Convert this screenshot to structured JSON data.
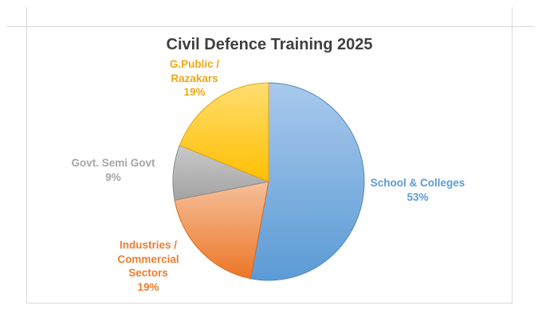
{
  "ui": {
    "background_color": "#FFFFFF",
    "gridline_color": "#D8D8D8"
  },
  "chart_data": {
    "type": "pie",
    "title": "Civil Defence Training 2025",
    "title_color": "#3F3F3F",
    "categories": [
      "School & Colleges",
      "Industries / Commercial Sectors",
      "Govt. Semi Govt",
      "G.Public / Razakars"
    ],
    "values": [
      53,
      19,
      9,
      19
    ],
    "unit": "%",
    "start_angle_deg": 0,
    "direction": "clockwise",
    "legend": "none",
    "labels_position": "outside-end",
    "slices": [
      {
        "slug": "school-colleges",
        "name": "School & Colleges",
        "value": 53,
        "pct_label": "53%",
        "color": "#5B9BD5",
        "color_light": "#A9C9EC",
        "border": "#4F86C0",
        "text_color": "#5B9BD5",
        "lines": [
          "School & Colleges",
          "53%"
        ]
      },
      {
        "slug": "industries-commercial",
        "name": "Industries / Commercial Sectors",
        "value": 19,
        "pct_label": "19%",
        "color": "#EC7626",
        "color_light": "#F6C09A",
        "border": "#DC6B1E",
        "text_color": "#ED7D31",
        "lines": [
          "Industries /",
          "Commercial",
          "Sectors",
          "19%"
        ]
      },
      {
        "slug": "govt-semi-govt",
        "name": "Govt. Semi Govt",
        "value": 9,
        "pct_label": "9%",
        "color": "#A3A3A3",
        "color_light": "#C9C9C9",
        "border": "#8C8C8C",
        "text_color": "#A6A6A6",
        "lines": [
          "Govt. Semi Govt",
          "9%"
        ]
      },
      {
        "slug": "gpublic-razakars",
        "name": "G.Public / Razakars",
        "value": 19,
        "pct_label": "19%",
        "color": "#FFC000",
        "color_light": "#FFDD71",
        "border": "#E2A511",
        "text_color": "#EDA817",
        "lines": [
          "G.Public /",
          "Razakars",
          "19%"
        ]
      }
    ]
  }
}
